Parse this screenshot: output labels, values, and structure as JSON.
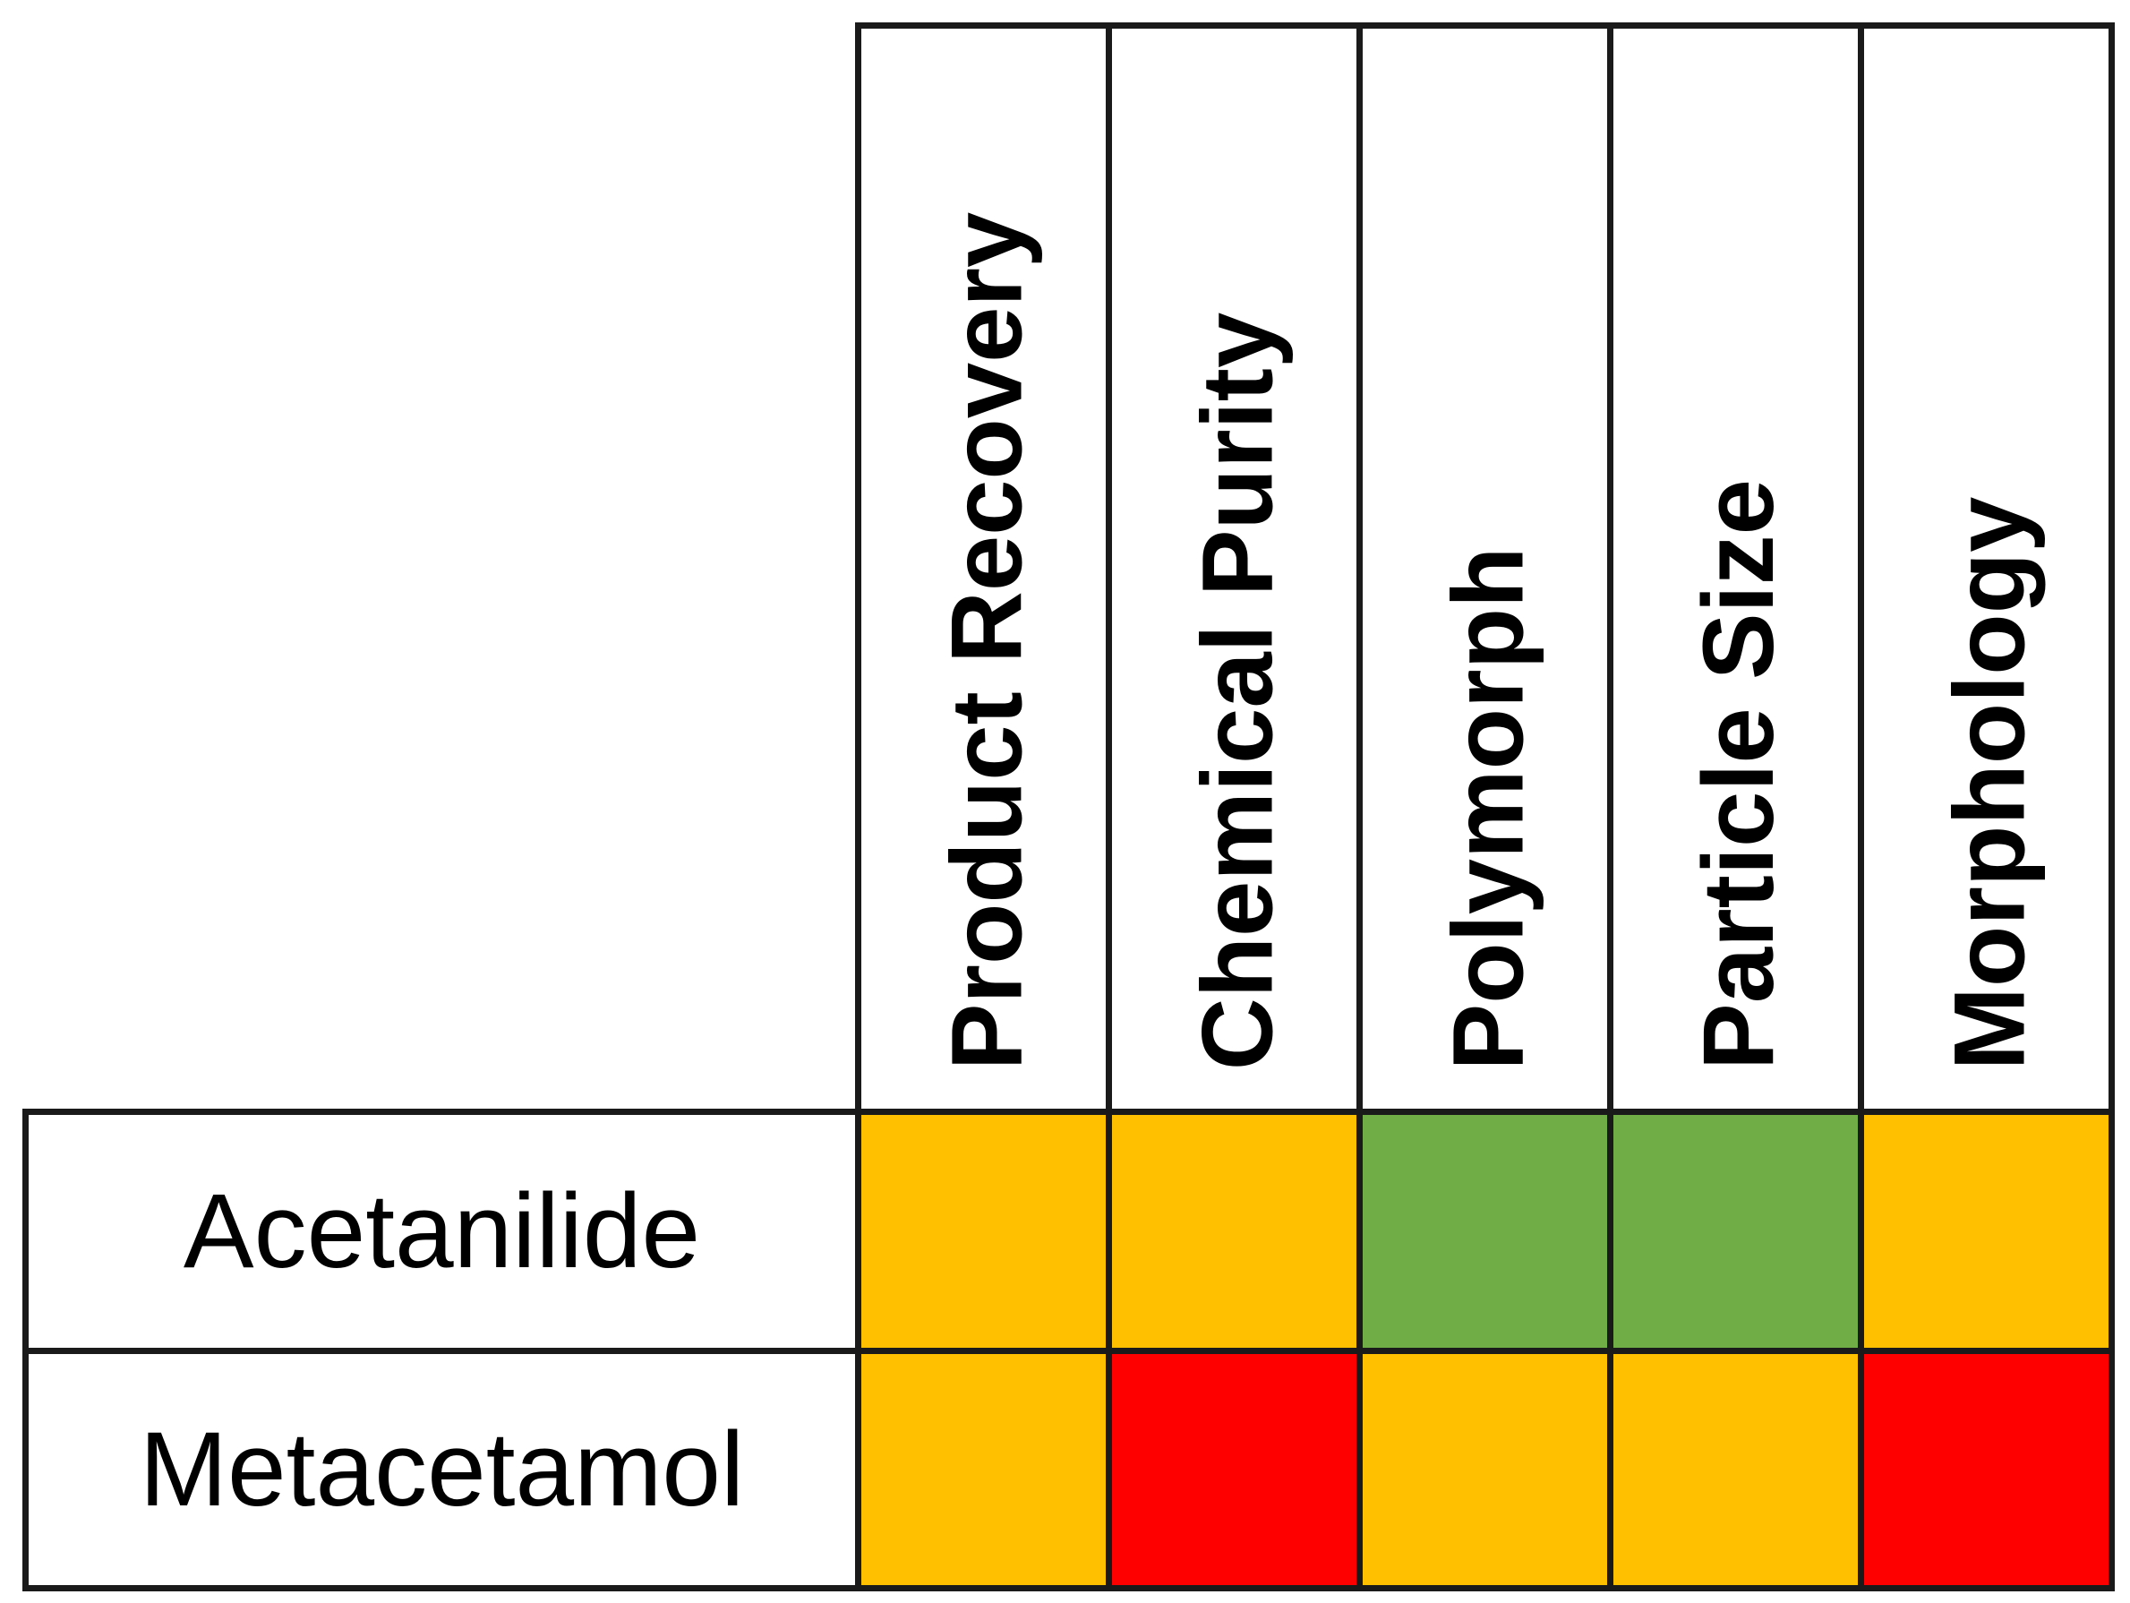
{
  "columns": [
    "Product Recovery",
    "Chemical Purity",
    "Polymorph",
    "Particle Size",
    "Morphology"
  ],
  "rows": [
    {
      "label": "Acetanilide",
      "ratings": [
        "amber",
        "amber",
        "green",
        "green",
        "amber"
      ]
    },
    {
      "label": "Metacetamol",
      "ratings": [
        "amber",
        "red",
        "amber",
        "amber",
        "red"
      ]
    }
  ],
  "colors": {
    "amber": "#ffc000",
    "green": "#70ad47",
    "red": "#ff0000"
  }
}
